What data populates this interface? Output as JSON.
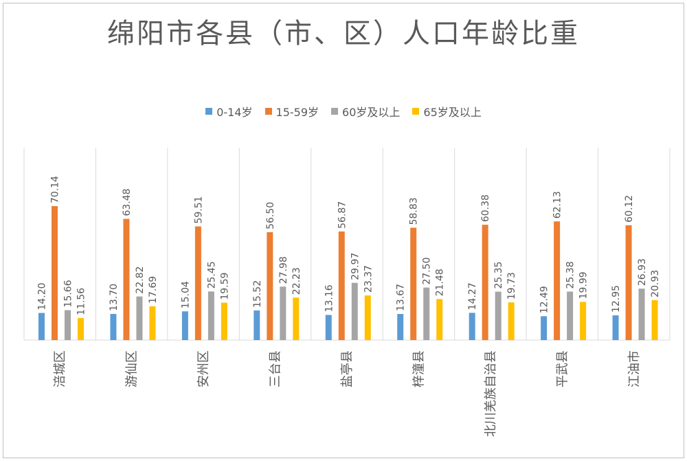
{
  "chart_data": {
    "type": "bar",
    "title": "绵阳市各县（市、区）人口年龄比重",
    "categories": [
      "涪城区",
      "游仙区",
      "安州区",
      "三台县",
      "盐亭县",
      "梓潼县",
      "北川羌族自治县",
      "平武县",
      "江油市"
    ],
    "series": [
      {
        "name": "0-14岁",
        "color": "#5B9BD5",
        "values": [
          14.2,
          13.7,
          15.04,
          15.52,
          13.16,
          13.67,
          14.27,
          12.49,
          12.95
        ]
      },
      {
        "name": "15-59岁",
        "color": "#ED7D31",
        "values": [
          70.14,
          63.48,
          59.51,
          56.5,
          56.87,
          58.83,
          60.38,
          62.13,
          60.12
        ]
      },
      {
        "name": "60岁及以上",
        "color": "#A5A5A5",
        "values": [
          15.66,
          22.82,
          25.45,
          27.98,
          29.97,
          27.5,
          25.35,
          25.38,
          26.93
        ]
      },
      {
        "name": "65岁及以上",
        "color": "#FFC000",
        "values": [
          11.56,
          17.69,
          19.59,
          22.23,
          23.37,
          21.48,
          19.73,
          19.99,
          20.93
        ]
      }
    ],
    "ylim": [
      0,
      80
    ],
    "xlabel": "",
    "ylabel": "",
    "grid": false,
    "legend_position": "top"
  }
}
